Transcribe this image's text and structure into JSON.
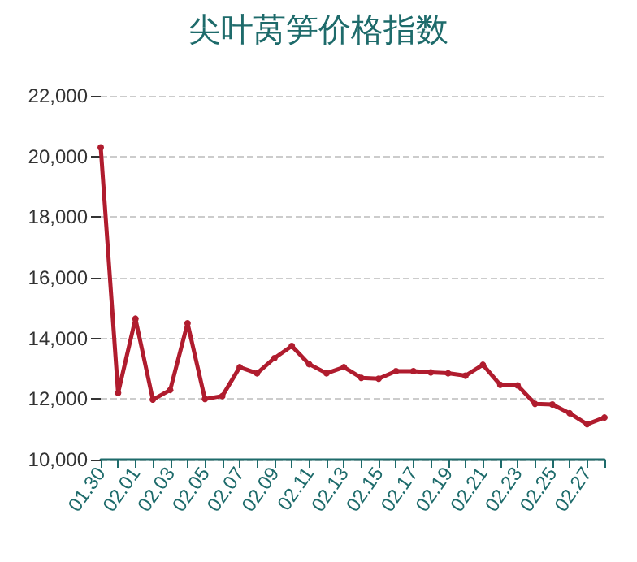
{
  "chart_data": {
    "type": "line",
    "title": "尖叶莴笋价格指数",
    "categories": [
      "01.30",
      null,
      "02.01",
      null,
      "02.03",
      null,
      "02.05",
      null,
      "02.07",
      null,
      "02.09",
      null,
      "02.11",
      null,
      "02.13",
      null,
      "02.15",
      null,
      "02.17",
      null,
      "02.19",
      null,
      "02.21",
      null,
      "02.23",
      null,
      "02.25",
      null,
      "02.27",
      null
    ],
    "series": [
      {
        "color": "#b01c2e",
        "values": [
          20300,
          12200,
          14650,
          11980,
          12300,
          14500,
          12000,
          12100,
          13050,
          12850,
          13350,
          13750,
          13150,
          12850,
          13050,
          12700,
          12670,
          12920,
          12920,
          12880,
          12850,
          12770,
          13130,
          12470,
          12450,
          11840,
          11820,
          11530,
          11170,
          11390
        ]
      }
    ],
    "ylim": [
      10000,
      22000
    ],
    "yticks": [
      {
        "value": 10000,
        "label": "10,000"
      },
      {
        "value": 12000,
        "label": "12,000"
      },
      {
        "value": 14000,
        "label": "14,000"
      },
      {
        "value": 16000,
        "label": "16,000"
      },
      {
        "value": 18000,
        "label": "18,000"
      },
      {
        "value": 20000,
        "label": "20,000"
      },
      {
        "value": 22000,
        "label": "22,000"
      }
    ],
    "grid": "y",
    "marker": "circle",
    "line_style": "solid"
  }
}
